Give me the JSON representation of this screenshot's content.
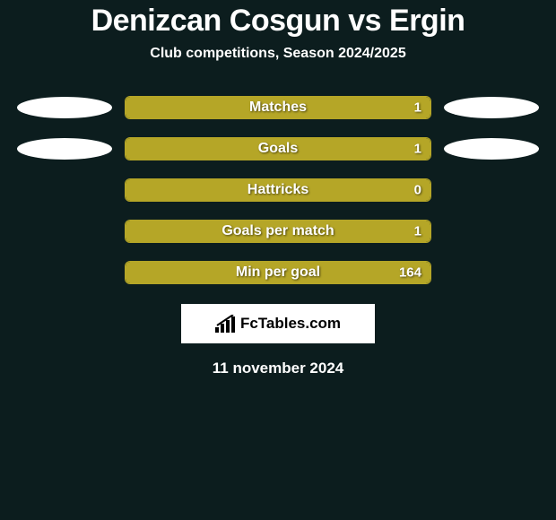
{
  "background": {
    "left_color": "#0c1d1e",
    "right_color": "#0c1d1e"
  },
  "title": "Denizcan Cosgun vs Ergin",
  "subtitle": "Club competitions, Season 2024/2025",
  "player_left": {
    "accent_color": "#b5a627",
    "fill_color": "#b5a627"
  },
  "player_right": {
    "accent_color": "#0c1d1e",
    "fill_color": "#0c1d1e"
  },
  "stats": [
    {
      "label": "Matches",
      "value_display": "1",
      "left_pct": 100,
      "right_pct": 0,
      "show_left_ellipse": true,
      "show_right_ellipse": true
    },
    {
      "label": "Goals",
      "value_display": "1",
      "left_pct": 100,
      "right_pct": 0,
      "show_left_ellipse": true,
      "show_right_ellipse": true
    },
    {
      "label": "Hattricks",
      "value_display": "0",
      "left_pct": 100,
      "right_pct": 0,
      "show_left_ellipse": false,
      "show_right_ellipse": false
    },
    {
      "label": "Goals per match",
      "value_display": "1",
      "left_pct": 100,
      "right_pct": 0,
      "show_left_ellipse": false,
      "show_right_ellipse": false
    },
    {
      "label": "Min per goal",
      "value_display": "164",
      "left_pct": 100,
      "right_pct": 0,
      "show_left_ellipse": false,
      "show_right_ellipse": false
    }
  ],
  "attribution": {
    "text": "FcTables.com"
  },
  "date": "11 november 2024",
  "bar_style": {
    "track_width": 342,
    "track_height": 26,
    "border_color": "#b5a627",
    "border_radius": 6,
    "label_color": "#ffffff",
    "label_fontsize": 16,
    "value_fontsize": 15
  },
  "typography": {
    "title_fontsize": 34,
    "title_color": "#ffffff",
    "subtitle_fontsize": 16,
    "subtitle_color": "#ffffff",
    "date_fontsize": 17,
    "date_color": "#ffffff"
  }
}
